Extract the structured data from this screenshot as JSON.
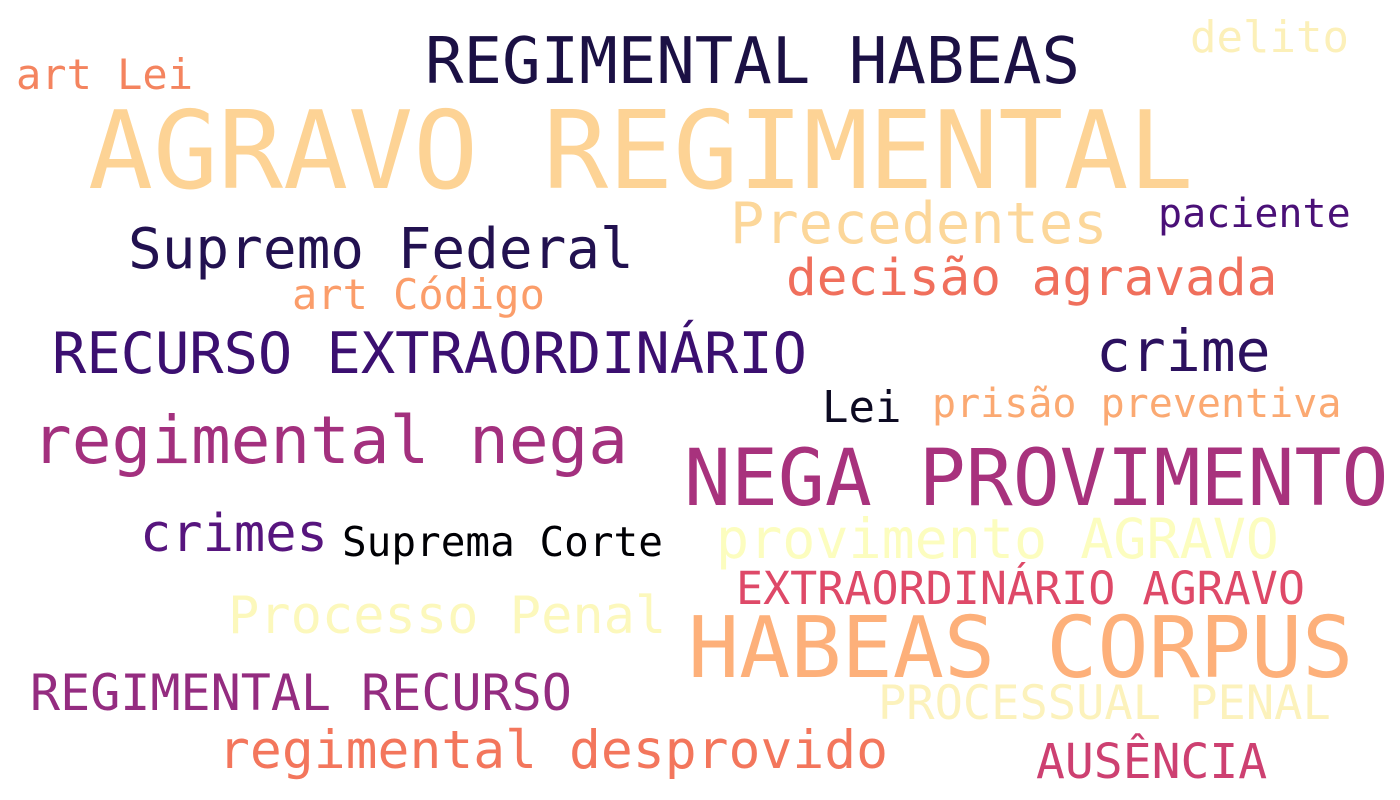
{
  "cloud": {
    "words": [
      {
        "text": "AGRAVO REGIMENTAL",
        "color": "#fdd395"
      },
      {
        "text": "REGIMENTAL HABEAS",
        "color": "#1b1044"
      },
      {
        "text": "delito",
        "color": "#fcf0b9"
      },
      {
        "text": "art Lei",
        "color": "#f4845f"
      },
      {
        "text": "Precedentes",
        "color": "#fcd79a"
      },
      {
        "text": "paciente",
        "color": "#4a1077"
      },
      {
        "text": "Supremo Federal",
        "color": "#221150"
      },
      {
        "text": "decisão agravada",
        "color": "#f06f5c"
      },
      {
        "text": "art Código",
        "color": "#fb9d6a"
      },
      {
        "text": "RECURSO EXTRAORDINÁRIO",
        "color": "#3b0f70"
      },
      {
        "text": "crime",
        "color": "#2c115f"
      },
      {
        "text": "Lei",
        "color": "#0d0a22"
      },
      {
        "text": "prisão preventiva",
        "color": "#fba972"
      },
      {
        "text": "regimental nega",
        "color": "#a3307e"
      },
      {
        "text": "NEGA PROVIMENTO",
        "color": "#a8327d"
      },
      {
        "text": "crimes",
        "color": "#57157e"
      },
      {
        "text": "Suprema Corte",
        "color": "#000004"
      },
      {
        "text": "provimento AGRAVO",
        "color": "#fcfdbf"
      },
      {
        "text": "EXTRAORDINÁRIO AGRAVO",
        "color": "#de4968"
      },
      {
        "text": "Processo Penal",
        "color": "#fcf8bc"
      },
      {
        "text": "HABEAS CORPUS",
        "color": "#fdb07a"
      },
      {
        "text": "REGIMENTAL RECURSO",
        "color": "#942c80"
      },
      {
        "text": "PROCESSUAL PENAL",
        "color": "#fcf2bc"
      },
      {
        "text": "regimental desprovido",
        "color": "#f3765c"
      },
      {
        "text": "AUSÊNCIA",
        "color": "#cd4071"
      }
    ]
  }
}
